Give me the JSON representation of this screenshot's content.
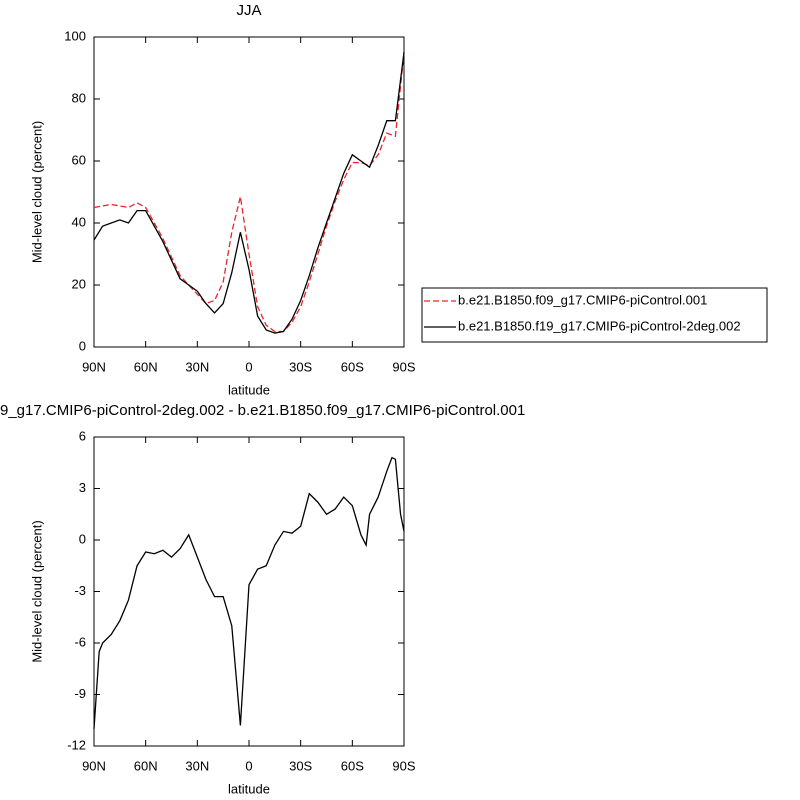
{
  "chart_data": [
    {
      "type": "line",
      "title": "JJA",
      "xlabel": "latitude",
      "ylabel": "Mid-level cloud (percent)",
      "x": [
        90,
        85,
        80,
        75,
        70,
        65,
        60,
        55,
        50,
        45,
        40,
        35,
        30,
        25,
        20,
        15,
        10,
        5,
        0,
        -5,
        -10,
        -15,
        -20,
        -25,
        -30,
        -35,
        -40,
        -45,
        -50,
        -55,
        -60,
        -65,
        -70,
        -75,
        -80,
        -85,
        -90
      ],
      "series": [
        {
          "name": "b.e21.B1850.f09_g17.CMIP6-piControl.001",
          "color": "#e8262b",
          "dashed": true,
          "values": [
            45,
            45.5,
            46,
            45.5,
            45,
            46.5,
            45,
            40,
            35,
            29,
            23,
            20,
            17,
            14,
            15,
            21,
            37,
            48.5,
            30,
            13,
            7,
            5,
            5,
            8,
            13,
            21,
            30,
            39,
            47,
            54,
            59.5,
            59.5,
            58.5,
            62,
            69,
            68,
            95
          ]
        },
        {
          "name": "b.e21.B1850.f19_g17.CMIP6-piControl-2deg.002",
          "color": "#000000",
          "dashed": false,
          "values": [
            34.5,
            39,
            40,
            41,
            40,
            44,
            44,
            39,
            34,
            28,
            22,
            20,
            18,
            14,
            11,
            14,
            24,
            37,
            25,
            10,
            5.5,
            4.5,
            5,
            9,
            15,
            23,
            32,
            40,
            48,
            56,
            62,
            60,
            58,
            65,
            73,
            73,
            95
          ]
        }
      ],
      "xlim": [
        90,
        -90
      ],
      "xticks": [
        {
          "value": 90,
          "label": "90N"
        },
        {
          "value": 60,
          "label": "60N"
        },
        {
          "value": 30,
          "label": "30N"
        },
        0,
        {
          "value": -30,
          "label": "30S"
        },
        {
          "value": -60,
          "label": "60S"
        },
        {
          "value": -90,
          "label": "90S"
        }
      ],
      "ylim": [
        0,
        100
      ],
      "yticks": [
        0,
        20,
        40,
        60,
        80,
        100
      ],
      "legend": "right"
    },
    {
      "type": "line",
      "title": "9_g17.CMIP6-piControl-2deg.002 - b.e21.B1850.f09_g17.CMIP6-piControl.001",
      "xlabel": "latitude",
      "ylabel": "Mid-level cloud (percent)",
      "x": [
        90,
        87,
        85,
        80,
        75,
        70,
        65,
        60,
        55,
        50,
        45,
        40,
        35,
        30,
        25,
        20,
        15,
        10,
        5,
        0,
        -5,
        -10,
        -15,
        -20,
        -25,
        -30,
        -35,
        -40,
        -45,
        -50,
        -55,
        -60,
        -65,
        -68,
        -70,
        -75,
        -80,
        -83,
        -85,
        -88,
        -90
      ],
      "series": [
        {
          "color": "#000000",
          "dashed": false,
          "values": [
            -11,
            -6.5,
            -6,
            -5.5,
            -4.7,
            -3.5,
            -1.5,
            -0.7,
            -0.8,
            -0.6,
            -1,
            -0.5,
            0.3,
            -1,
            -2.3,
            -3.3,
            -3.3,
            -5,
            -10.8,
            -2.6,
            -1.7,
            -1.5,
            -0.3,
            0.5,
            0.4,
            0.8,
            2.7,
            2.2,
            1.5,
            1.8,
            2.5,
            2,
            0.3,
            -0.3,
            1.5,
            2.5,
            4,
            4.8,
            4.7,
            1.5,
            0.5
          ]
        }
      ],
      "xlim": [
        90,
        -90
      ],
      "xticks": [
        {
          "value": 90,
          "label": "90N"
        },
        {
          "value": 60,
          "label": "60N"
        },
        {
          "value": 30,
          "label": "30N"
        },
        0,
        {
          "value": -30,
          "label": "30S"
        },
        {
          "value": -60,
          "label": "60S"
        },
        {
          "value": -90,
          "label": "90S"
        }
      ],
      "ylim": [
        -12,
        6
      ],
      "yticks": [
        -12,
        -9,
        -6,
        -3,
        0,
        3,
        6
      ]
    }
  ]
}
